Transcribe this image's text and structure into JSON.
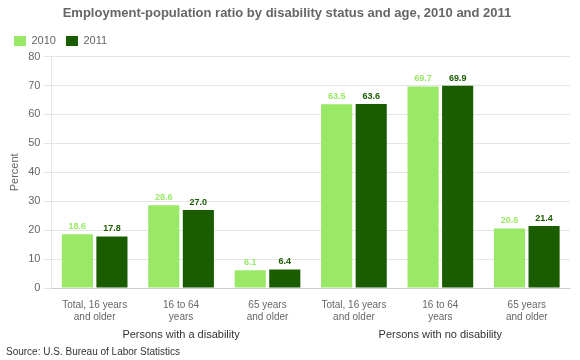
{
  "chart_data": {
    "type": "bar",
    "title": "Employment-population ratio by disability status and age, 2010 and 2011",
    "ylabel": "Percent",
    "categories": [
      "Total, 16 years\nand older",
      "16 to 64\nyears",
      "65 years\nand older",
      "Total, 16 years\nand older",
      "16 to 64\nyears",
      "65 years\nand older"
    ],
    "group_labels": [
      "Persons with a disability",
      "Persons with no disability"
    ],
    "source": "Source: U.S. Bureau of Labor Statistics",
    "series": [
      {
        "name": "2010",
        "color": "#99e866",
        "values": [
          18.6,
          28.6,
          6.1,
          63.5,
          69.7,
          20.6
        ],
        "value_labels": [
          "18.6",
          "28.6",
          "6.1",
          "63.5",
          "69.7",
          "20.6"
        ]
      },
      {
        "name": "2011",
        "color": "#1a5c00",
        "values": [
          17.8,
          27.0,
          6.4,
          63.6,
          69.9,
          21.4
        ],
        "value_labels": [
          "17.8",
          "27.0",
          "6.4",
          "63.6",
          "69.9",
          "21.4"
        ]
      }
    ],
    "ylim": [
      0,
      80
    ],
    "yticks": [
      0,
      10,
      20,
      30,
      40,
      50,
      60,
      70,
      80
    ],
    "grid": true,
    "legend": "upper left",
    "data_labels": true
  }
}
